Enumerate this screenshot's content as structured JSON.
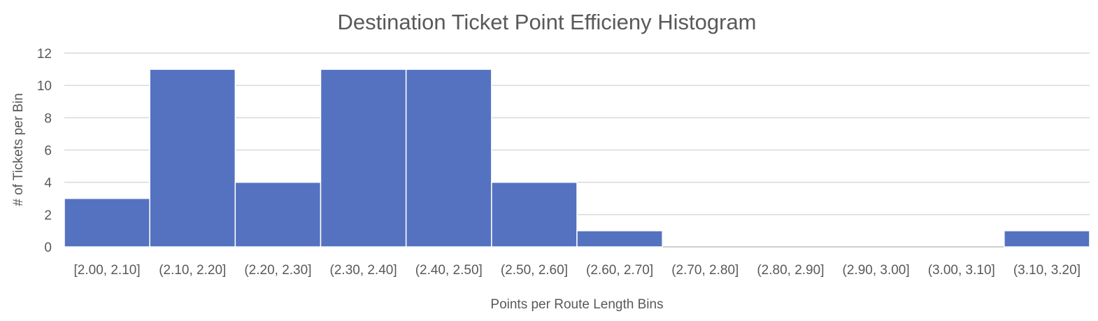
{
  "chart_data": {
    "type": "bar",
    "title": "Destination Ticket Point Efficieny Histogram",
    "xlabel": "Points per Route Length Bins",
    "ylabel": "# of Tickets per Bin",
    "categories": [
      "[2.00, 2.10]",
      "(2.10, 2.20]",
      "(2.20, 2.30]",
      "(2.30, 2.40]",
      "(2.40, 2.50]",
      "(2.50, 2.60]",
      "(2.60, 2.70]",
      "(2.70, 2.80]",
      "(2.80, 2.90]",
      "(2.90, 3.00]",
      "(3.00, 3.10]",
      "(3.10, 3.20]"
    ],
    "values": [
      3,
      11,
      4,
      11,
      11,
      4,
      1,
      0,
      0,
      0,
      0,
      1
    ],
    "ylim": [
      0,
      12
    ],
    "yticks": [
      0,
      2,
      4,
      6,
      8,
      10,
      12
    ],
    "grid": true,
    "legend": "none",
    "bar_color": "#5572c1",
    "gap": "none"
  }
}
